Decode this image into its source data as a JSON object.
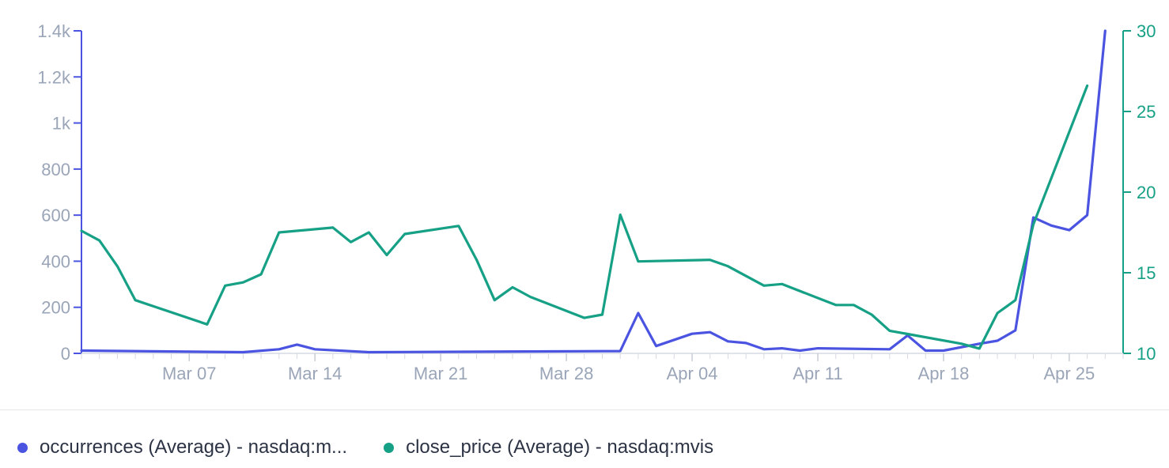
{
  "chart_data": {
    "type": "line",
    "x_ticks": [
      "Mar 07",
      "Mar 14",
      "Mar 21",
      "Mar 28",
      "Apr 04",
      "Apr 11",
      "Apr 18",
      "Apr 25"
    ],
    "y_left": {
      "range": [
        0,
        1400
      ],
      "ticks": [
        "0",
        "200",
        "400",
        "600",
        "800",
        "1k",
        "1.2k",
        "1.4k"
      ],
      "tick_values": [
        0,
        200,
        400,
        600,
        800,
        1000,
        1200,
        1400
      ],
      "color": "#4a54e1"
    },
    "y_right": {
      "range": [
        10,
        30
      ],
      "ticks": [
        "10",
        "15",
        "20",
        "25",
        "30"
      ],
      "tick_values": [
        10,
        15,
        20,
        25,
        30
      ],
      "color": "#16a085"
    },
    "x_range": [
      "2022-03-01",
      "2022-04-28"
    ],
    "series": [
      {
        "name": "occurrences (Average) - nasdaq:m...",
        "axis": "left",
        "color": "#4a54e1",
        "points": [
          [
            "2022-03-01",
            12
          ],
          [
            "2022-03-10",
            5
          ],
          [
            "2022-03-12",
            18
          ],
          [
            "2022-03-13",
            38
          ],
          [
            "2022-03-14",
            18
          ],
          [
            "2022-03-17",
            5
          ],
          [
            "2022-03-31",
            10
          ],
          [
            "2022-04-01",
            175
          ],
          [
            "2022-04-02",
            32
          ],
          [
            "2022-04-04",
            85
          ],
          [
            "2022-04-05",
            92
          ],
          [
            "2022-04-06",
            52
          ],
          [
            "2022-04-07",
            45
          ],
          [
            "2022-04-08",
            18
          ],
          [
            "2022-04-09",
            22
          ],
          [
            "2022-04-10",
            12
          ],
          [
            "2022-04-11",
            22
          ],
          [
            "2022-04-15",
            18
          ],
          [
            "2022-04-16",
            78
          ],
          [
            "2022-04-17",
            12
          ],
          [
            "2022-04-18",
            12
          ],
          [
            "2022-04-20",
            42
          ],
          [
            "2022-04-21",
            55
          ],
          [
            "2022-04-22",
            100
          ],
          [
            "2022-04-23",
            590
          ],
          [
            "2022-04-24",
            555
          ],
          [
            "2022-04-25",
            535
          ],
          [
            "2022-04-26",
            600
          ],
          [
            "2022-04-27",
            1400
          ]
        ]
      },
      {
        "name": "close_price (Average) - nasdaq:mvis",
        "axis": "right",
        "color": "#16a085",
        "points": [
          [
            "2022-03-01",
            17.6
          ],
          [
            "2022-03-02",
            17.0
          ],
          [
            "2022-03-03",
            15.4
          ],
          [
            "2022-03-04",
            13.3
          ],
          [
            "2022-03-08",
            11.8
          ],
          [
            "2022-03-09",
            14.2
          ],
          [
            "2022-03-10",
            14.4
          ],
          [
            "2022-03-11",
            14.9
          ],
          [
            "2022-03-12",
            17.5
          ],
          [
            "2022-03-15",
            17.8
          ],
          [
            "2022-03-16",
            16.9
          ],
          [
            "2022-03-17",
            17.5
          ],
          [
            "2022-03-18",
            16.1
          ],
          [
            "2022-03-19",
            17.4
          ],
          [
            "2022-03-22",
            17.9
          ],
          [
            "2022-03-23",
            15.8
          ],
          [
            "2022-03-24",
            13.3
          ],
          [
            "2022-03-25",
            14.1
          ],
          [
            "2022-03-26",
            13.5
          ],
          [
            "2022-03-29",
            12.2
          ],
          [
            "2022-03-30",
            12.4
          ],
          [
            "2022-03-31",
            18.6
          ],
          [
            "2022-04-01",
            15.7
          ],
          [
            "2022-04-05",
            15.8
          ],
          [
            "2022-04-06",
            15.4
          ],
          [
            "2022-04-08",
            14.2
          ],
          [
            "2022-04-09",
            14.3
          ],
          [
            "2022-04-12",
            13.0
          ],
          [
            "2022-04-13",
            13.0
          ],
          [
            "2022-04-14",
            12.4
          ],
          [
            "2022-04-15",
            11.4
          ],
          [
            "2022-04-16",
            11.2
          ],
          [
            "2022-04-19",
            10.6
          ],
          [
            "2022-04-20",
            10.3
          ],
          [
            "2022-04-21",
            12.5
          ],
          [
            "2022-04-22",
            13.3
          ],
          [
            "2022-04-23",
            18.0
          ],
          [
            "2022-04-26",
            26.6
          ]
        ]
      }
    ],
    "legend_position": "bottom-left",
    "grid": false
  }
}
